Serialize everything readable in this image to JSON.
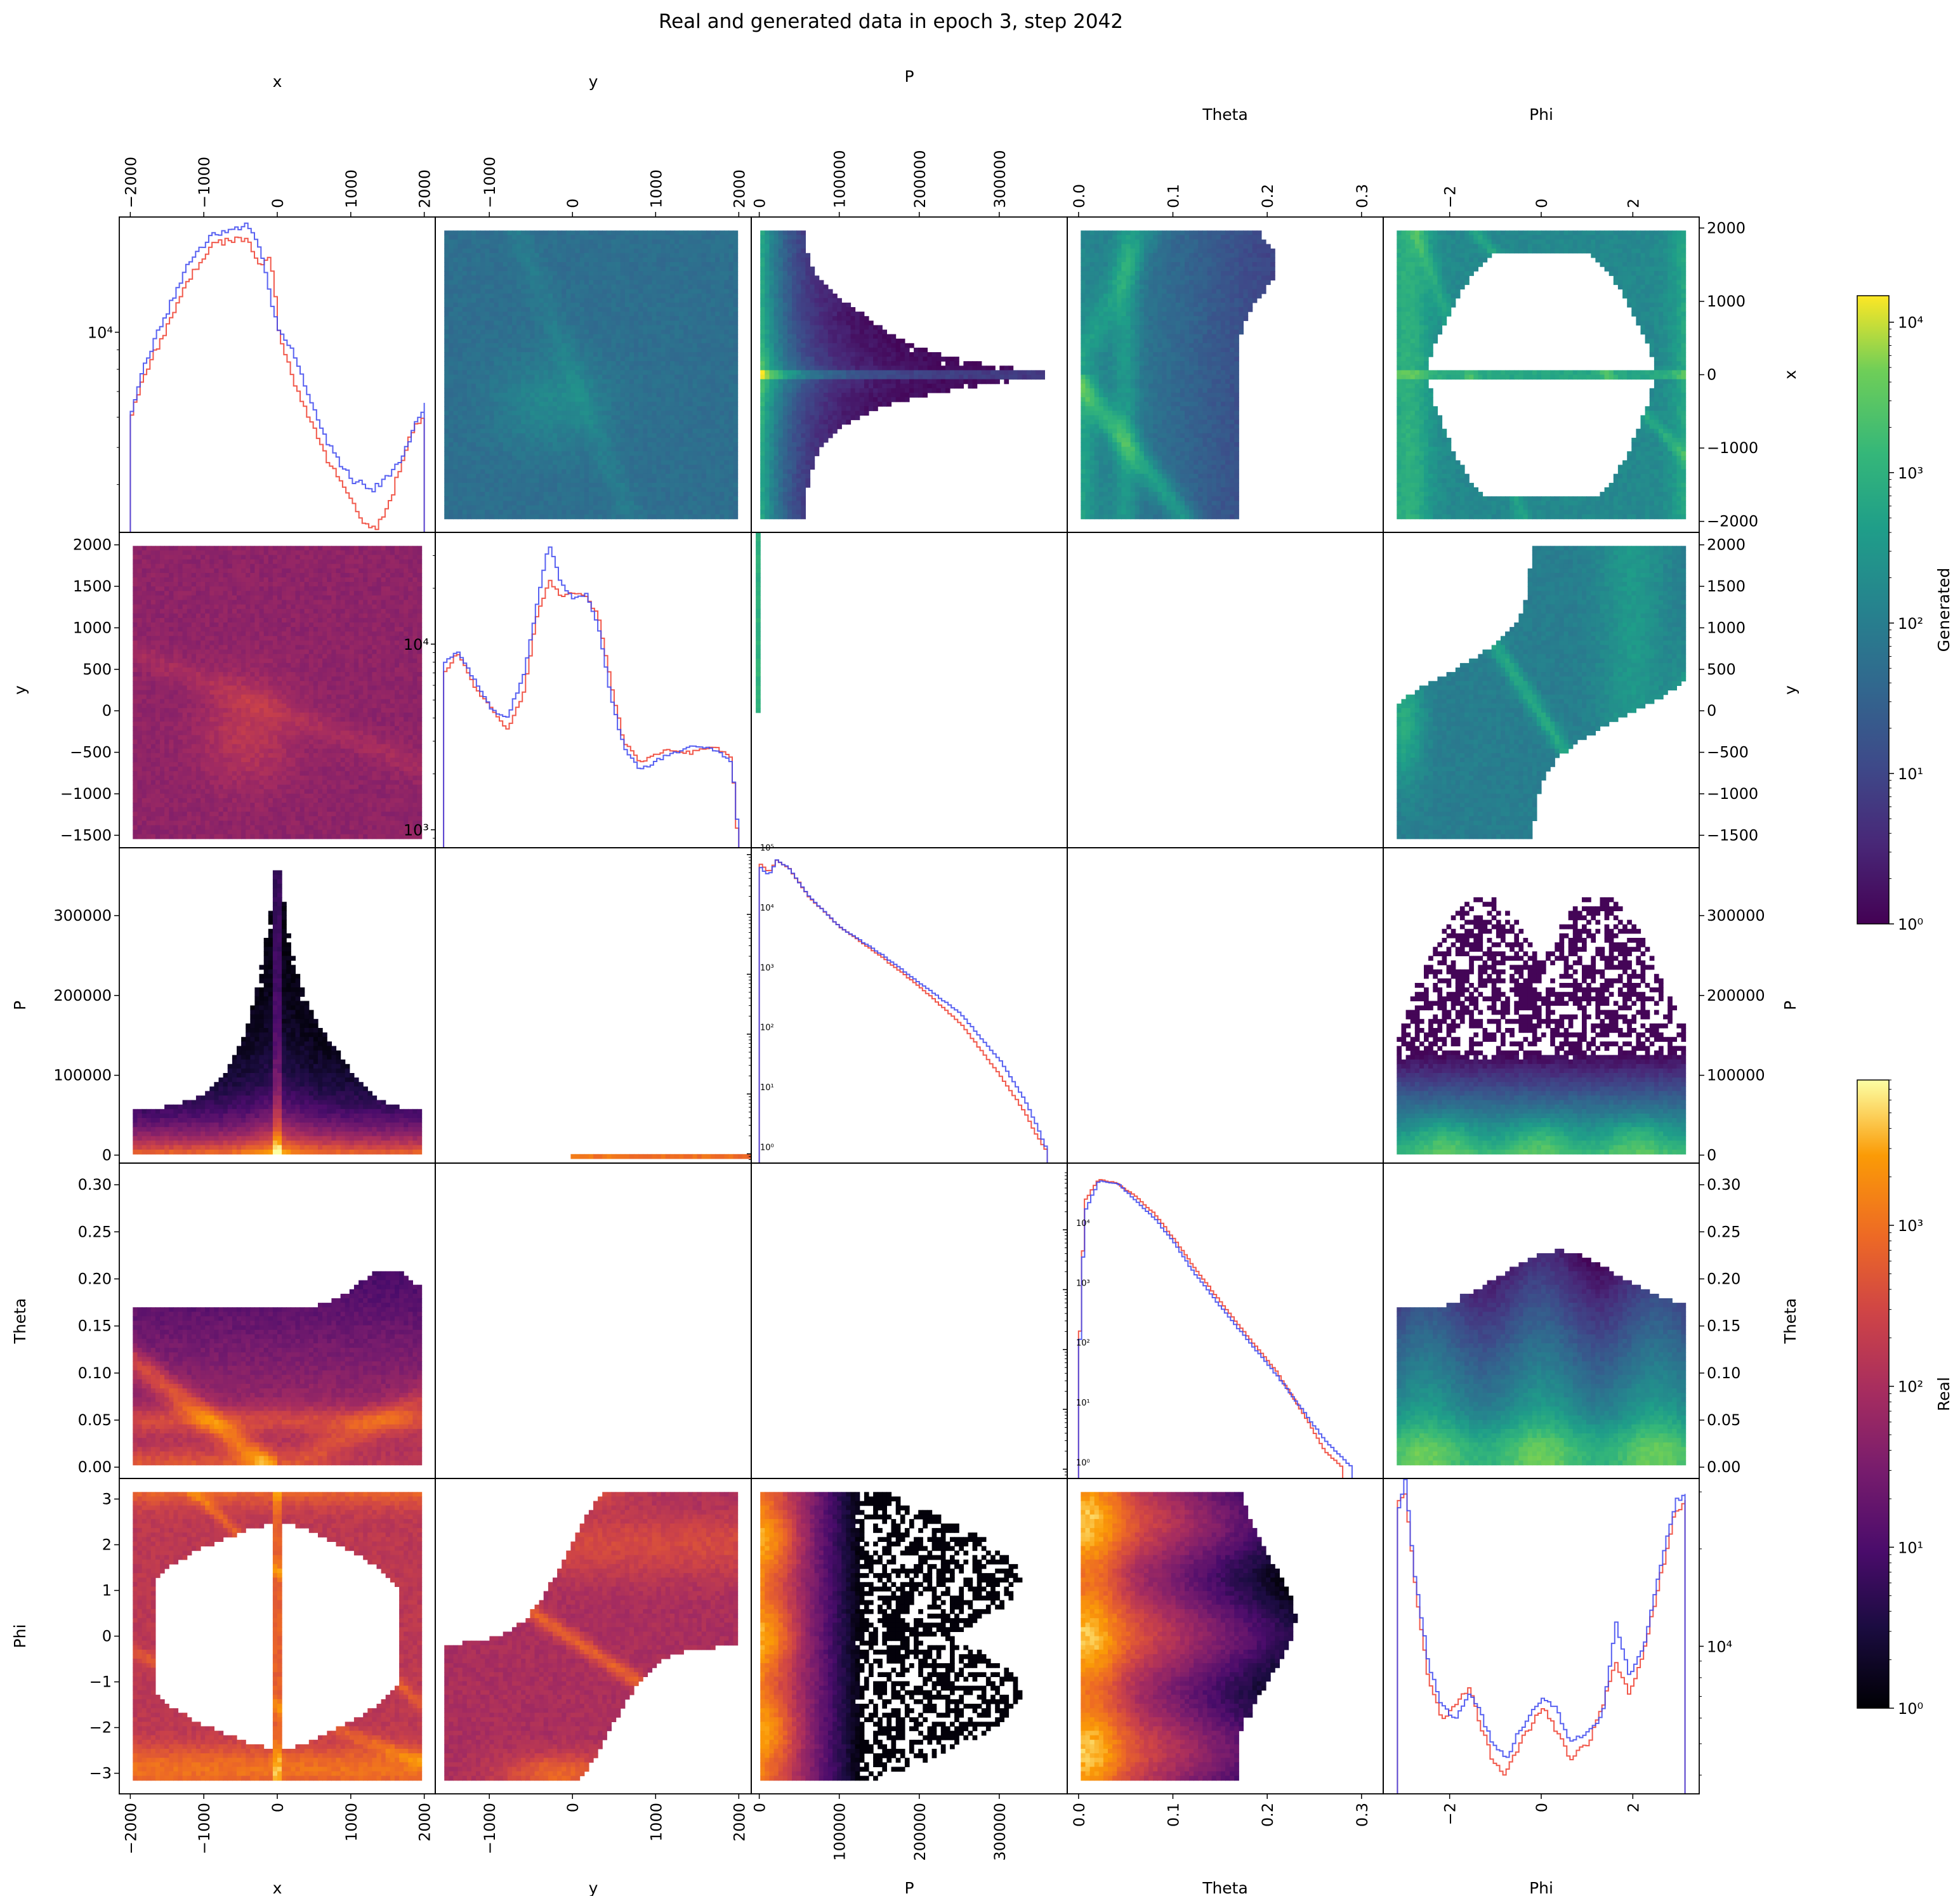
{
  "figure": {
    "title": "Real and generated data in epoch 3, step 2042"
  },
  "colorbars": [
    {
      "label": "Generated",
      "colormap": "viridis",
      "scale": "log",
      "min": 1,
      "max": 15000,
      "ticks": [
        {
          "v": 1,
          "t": "10⁰"
        },
        {
          "v": 10,
          "t": "10¹"
        },
        {
          "v": 100,
          "t": "10²"
        },
        {
          "v": 1000,
          "t": "10³"
        },
        {
          "v": 10000,
          "t": "10⁴"
        }
      ]
    },
    {
      "label": "Real",
      "colormap": "inferno",
      "scale": "log",
      "min": 1,
      "max": 8000,
      "ticks": [
        {
          "v": 1,
          "t": "10⁰"
        },
        {
          "v": 10,
          "t": "10¹"
        },
        {
          "v": 100,
          "t": "10²"
        },
        {
          "v": 1000,
          "t": "10³"
        }
      ]
    }
  ],
  "chart_data": {
    "type": "pair_grid",
    "layout": {
      "diagonal": "1D histogram (log y)",
      "upper": "Generated 2D histogram",
      "lower": "Real 2D histogram"
    },
    "histogram_series": [
      {
        "color": "#ef3b2c"
      },
      {
        "color": "#3b45ee"
      }
    ],
    "variables": [
      {
        "name": "x",
        "range": [
          -2150,
          2150
        ],
        "ticks": [
          {
            "v": -2000,
            "t": "−2000"
          },
          {
            "v": -1000,
            "t": "−1000"
          },
          {
            "v": 0,
            "t": "0"
          },
          {
            "v": 1000,
            "t": "1000"
          },
          {
            "v": 2000,
            "t": "2000"
          }
        ]
      },
      {
        "name": "y",
        "range": [
          -1650,
          2150
        ],
        "ticks": [
          {
            "v": -1500,
            "t": "−1500"
          },
          {
            "v": -1000,
            "t": "−1000"
          },
          {
            "v": -500,
            "t": "−500"
          },
          {
            "v": 0,
            "t": "0"
          },
          {
            "v": 500,
            "t": "500"
          },
          {
            "v": 1000,
            "t": "1000"
          },
          {
            "v": 1500,
            "t": "1500"
          },
          {
            "v": 2000,
            "t": "2000"
          }
        ],
        "col_ticks": [
          {
            "v": -1000,
            "t": "−1000"
          },
          {
            "v": 0,
            "t": "0"
          },
          {
            "v": 1000,
            "t": "1000"
          },
          {
            "v": 2000,
            "t": "2000"
          }
        ]
      },
      {
        "name": "P",
        "range": [
          -10000,
          385000
        ],
        "ticks": [
          {
            "v": 0,
            "t": "0"
          },
          {
            "v": 100000,
            "t": "100000"
          },
          {
            "v": 200000,
            "t": "200000"
          },
          {
            "v": 300000,
            "t": "300000"
          }
        ],
        "col_ticks": [
          {
            "v": 0,
            "t": "0"
          },
          {
            "v": 100000,
            "t": "100000"
          },
          {
            "v": 200000,
            "t": "200000"
          },
          {
            "v": 300000,
            "t": "300000"
          }
        ]
      },
      {
        "name": "Theta",
        "range": [
          -0.012,
          0.323
        ],
        "ticks": [
          {
            "v": 0,
            "t": "0.00"
          },
          {
            "v": 0.05,
            "t": "0.05"
          },
          {
            "v": 0.1,
            "t": "0.10"
          },
          {
            "v": 0.15,
            "t": "0.15"
          },
          {
            "v": 0.2,
            "t": "0.20"
          },
          {
            "v": 0.25,
            "t": "0.25"
          },
          {
            "v": 0.3,
            "t": "0.30"
          }
        ],
        "col_ticks": [
          {
            "v": 0,
            "t": "0.0"
          },
          {
            "v": 0.1,
            "t": "0.1"
          },
          {
            "v": 0.2,
            "t": "0.2"
          },
          {
            "v": 0.3,
            "t": "0.3"
          }
        ]
      },
      {
        "name": "Phi",
        "range": [
          -3.45,
          3.45
        ],
        "ticks": [
          {
            "v": -3,
            "t": "−3"
          },
          {
            "v": -2,
            "t": "−2"
          },
          {
            "v": -1,
            "t": "−1"
          },
          {
            "v": 0,
            "t": "0"
          },
          {
            "v": 1,
            "t": "1"
          },
          {
            "v": 2,
            "t": "2"
          },
          {
            "v": 3,
            "t": "3"
          }
        ],
        "col_ticks": [
          {
            "v": -2,
            "t": "−2"
          },
          {
            "v": 0,
            "t": "0"
          },
          {
            "v": 2,
            "t": "2"
          }
        ]
      }
    ],
    "diagonal_hist": [
      {
        "var": "x",
        "ylog": [
          3000,
          20000
        ],
        "yticks": [
          {
            "v": 10000,
            "t": "10⁴"
          }
        ],
        "tick_side": "left",
        "series_values": [
          [
            [
              -2000,
              6200
            ],
            [
              -1800,
              8000
            ],
            [
              -1500,
              10500
            ],
            [
              -1200,
              14000
            ],
            [
              -900,
              17000
            ],
            [
              -600,
              17500
            ],
            [
              -400,
              17500
            ],
            [
              -250,
              14500
            ],
            [
              -150,
              16000
            ],
            [
              -60,
              13500
            ],
            [
              0,
              10200
            ],
            [
              150,
              8000
            ],
            [
              400,
              6000
            ],
            [
              700,
              4500
            ],
            [
              1000,
              3600
            ],
            [
              1200,
              3100
            ],
            [
              1350,
              3100
            ],
            [
              1550,
              3800
            ],
            [
              1700,
              4800
            ],
            [
              1850,
              5700
            ],
            [
              2000,
              6000
            ]
          ],
          [
            [
              -2000,
              6200
            ],
            [
              -1800,
              8500
            ],
            [
              -1500,
              11500
            ],
            [
              -1200,
              15500
            ],
            [
              -900,
              18000
            ],
            [
              -600,
              18500
            ],
            [
              -400,
              19000
            ],
            [
              -250,
              16500
            ],
            [
              -100,
              12000
            ],
            [
              0,
              10000
            ],
            [
              200,
              9000
            ],
            [
              400,
              6800
            ],
            [
              700,
              5000
            ],
            [
              1000,
              4100
            ],
            [
              1300,
              3900
            ],
            [
              1550,
              4300
            ],
            [
              1750,
              5000
            ],
            [
              1900,
              6000
            ],
            [
              2000,
              6500
            ]
          ]
        ]
      },
      {
        "var": "y",
        "ylog": [
          800,
          40000
        ],
        "yticks": [
          {
            "v": 1000,
            "t": "10³"
          },
          {
            "v": 10000,
            "t": "10⁴"
          }
        ],
        "tick_side": "left",
        "series_values": [
          [
            [
              -1550,
              7000
            ],
            [
              -1400,
              9000
            ],
            [
              -1200,
              6000
            ],
            [
              -1000,
              4500
            ],
            [
              -800,
              3500
            ],
            [
              -600,
              5500
            ],
            [
              -450,
              14000
            ],
            [
              -300,
              22000
            ],
            [
              -150,
              18000
            ],
            [
              0,
              19000
            ],
            [
              150,
              18000
            ],
            [
              300,
              14000
            ],
            [
              450,
              6000
            ],
            [
              600,
              3000
            ],
            [
              800,
              2300
            ],
            [
              1100,
              2700
            ],
            [
              1400,
              2600
            ],
            [
              1700,
              2800
            ],
            [
              1900,
              2400
            ],
            [
              2000,
              600
            ]
          ],
          [
            [
              -1550,
              8000
            ],
            [
              -1400,
              9000
            ],
            [
              -1200,
              6500
            ],
            [
              -1000,
              4500
            ],
            [
              -800,
              4000
            ],
            [
              -600,
              7000
            ],
            [
              -450,
              16000
            ],
            [
              -300,
              35000
            ],
            [
              -150,
              21000
            ],
            [
              0,
              17500
            ],
            [
              150,
              18500
            ],
            [
              300,
              12000
            ],
            [
              450,
              5000
            ],
            [
              600,
              2800
            ],
            [
              800,
              2100
            ],
            [
              1100,
              2500
            ],
            [
              1400,
              2800
            ],
            [
              1700,
              2700
            ],
            [
              1900,
              2300
            ],
            [
              2000,
              700
            ]
          ]
        ]
      },
      {
        "var": "P",
        "ylog": [
          0.7,
          130000
        ],
        "yticks": [
          {
            "v": 1,
            "t": "10⁰"
          },
          {
            "v": 10,
            "t": "10¹"
          },
          {
            "v": 100,
            "t": "10²"
          },
          {
            "v": 1000,
            "t": "10³"
          },
          {
            "v": 10000,
            "t": "10⁴"
          },
          {
            "v": 100000,
            "t": "10⁵"
          }
        ],
        "tick_side": "left",
        "series_values": [
          [
            [
              0,
              70000
            ],
            [
              10000,
              50000
            ],
            [
              20000,
              80000
            ],
            [
              35000,
              60000
            ],
            [
              60000,
              20000
            ],
            [
              100000,
              6000
            ],
            [
              150000,
              2000
            ],
            [
              200000,
              600
            ],
            [
              250000,
              150
            ],
            [
              300000,
              20
            ],
            [
              330000,
              5
            ],
            [
              345000,
              2
            ],
            [
              360000,
              1
            ]
          ],
          [
            [
              0,
              60000
            ],
            [
              10000,
              45000
            ],
            [
              20000,
              80000
            ],
            [
              35000,
              60000
            ],
            [
              60000,
              20000
            ],
            [
              100000,
              6000
            ],
            [
              150000,
              2200
            ],
            [
              200000,
              700
            ],
            [
              250000,
              220
            ],
            [
              300000,
              35
            ],
            [
              330000,
              8
            ],
            [
              345000,
              3
            ],
            [
              360000,
              1
            ]
          ]
        ]
      },
      {
        "var": "Theta",
        "ylog": [
          0.7,
          130000
        ],
        "yticks": [
          {
            "v": 1,
            "t": "10⁰"
          },
          {
            "v": 10,
            "t": "10¹"
          },
          {
            "v": 100,
            "t": "10²"
          },
          {
            "v": 1000,
            "t": "10³"
          },
          {
            "v": 10000,
            "t": "10⁴"
          }
        ],
        "tick_side": "left",
        "series_values": [
          [
            [
              0,
              200
            ],
            [
              0.005,
              30000
            ],
            [
              0.02,
              70000
            ],
            [
              0.04,
              60000
            ],
            [
              0.06,
              35000
            ],
            [
              0.08,
              18000
            ],
            [
              0.1,
              7000
            ],
            [
              0.12,
              2500
            ],
            [
              0.15,
              600
            ],
            [
              0.18,
              150
            ],
            [
              0.21,
              40
            ],
            [
              0.24,
              7
            ],
            [
              0.26,
              2
            ],
            [
              0.28,
              1
            ]
          ],
          [
            [
              0,
              150
            ],
            [
              0.005,
              20000
            ],
            [
              0.02,
              65000
            ],
            [
              0.04,
              60000
            ],
            [
              0.06,
              30000
            ],
            [
              0.08,
              15000
            ],
            [
              0.1,
              6000
            ],
            [
              0.12,
              2000
            ],
            [
              0.15,
              500
            ],
            [
              0.18,
              130
            ],
            [
              0.21,
              35
            ],
            [
              0.24,
              8
            ],
            [
              0.26,
              3
            ],
            [
              0.29,
              1
            ]
          ]
        ]
      },
      {
        "var": "Phi",
        "ylog": [
          3500,
          33000
        ],
        "yticks": [
          {
            "v": 10000,
            "t": "10⁴"
          }
        ],
        "tick_side": "right",
        "series_values": [
          [
            [
              -3.14,
              28000
            ],
            [
              -3.0,
              30000
            ],
            [
              -2.8,
              16000
            ],
            [
              -2.5,
              8000
            ],
            [
              -2.2,
              6000
            ],
            [
              -1.9,
              6500
            ],
            [
              -1.6,
              7500
            ],
            [
              -1.4,
              6000
            ],
            [
              -1.1,
              4500
            ],
            [
              -0.8,
              4000
            ],
            [
              -0.5,
              5000
            ],
            [
              0,
              6500
            ],
            [
              0.3,
              5500
            ],
            [
              0.6,
              4500
            ],
            [
              1.0,
              5000
            ],
            [
              1.3,
              6500
            ],
            [
              1.6,
              9000
            ],
            [
              1.9,
              7000
            ],
            [
              2.2,
              9500
            ],
            [
              2.6,
              17000
            ],
            [
              2.9,
              26000
            ],
            [
              3.14,
              28000
            ]
          ],
          [
            [
              -3.14,
              27000
            ],
            [
              -3.0,
              33000
            ],
            [
              -2.8,
              17000
            ],
            [
              -2.5,
              9000
            ],
            [
              -2.2,
              6500
            ],
            [
              -1.9,
              6000
            ],
            [
              -1.6,
              7000
            ],
            [
              -1.4,
              6500
            ],
            [
              -1.1,
              5000
            ],
            [
              -0.8,
              4500
            ],
            [
              -0.5,
              5500
            ],
            [
              0,
              7000
            ],
            [
              0.3,
              6500
            ],
            [
              0.6,
              5000
            ],
            [
              1.0,
              5500
            ],
            [
              1.3,
              6000
            ],
            [
              1.6,
              12000
            ],
            [
              1.9,
              8000
            ],
            [
              2.2,
              10000
            ],
            [
              2.6,
              18000
            ],
            [
              2.9,
              28000
            ],
            [
              3.14,
              29000
            ]
          ]
        ]
      }
    ]
  }
}
